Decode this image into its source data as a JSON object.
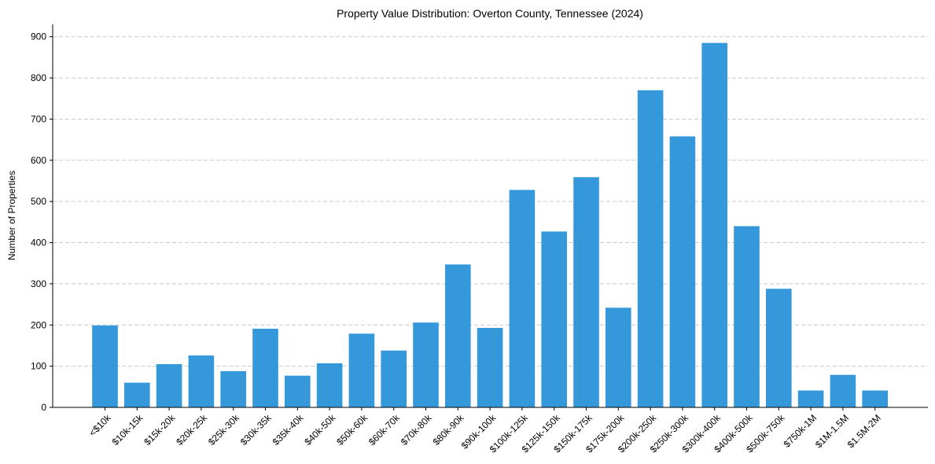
{
  "chart_data": {
    "type": "bar",
    "title": "Property Value Distribution: Overton County, Tennessee (2024)",
    "xlabel": "",
    "ylabel": "Number of Properties",
    "ylim": [
      0,
      930
    ],
    "yticks": [
      0,
      100,
      200,
      300,
      400,
      500,
      600,
      700,
      800,
      900
    ],
    "grid": "y-dashed",
    "bar_color": "#3498db",
    "categories": [
      "<$10k",
      "$10k-15k",
      "$15k-20k",
      "$20k-25k",
      "$25k-30k",
      "$30k-35k",
      "$35k-40k",
      "$40k-50k",
      "$50k-60k",
      "$60k-70k",
      "$70k-80k",
      "$80k-90k",
      "$90k-100k",
      "$100k-125k",
      "$125k-150k",
      "$150k-175k",
      "$175k-200k",
      "$200k-250k",
      "$250k-300k",
      "$300k-400k",
      "$400k-500k",
      "$500k-750k",
      "$750k-1M",
      "$1M-1.5M",
      "$1.5M-2M"
    ],
    "values": [
      199,
      60,
      105,
      126,
      88,
      191,
      77,
      107,
      179,
      138,
      206,
      347,
      193,
      528,
      427,
      559,
      242,
      770,
      658,
      885,
      440,
      288,
      41,
      79,
      41
    ]
  }
}
